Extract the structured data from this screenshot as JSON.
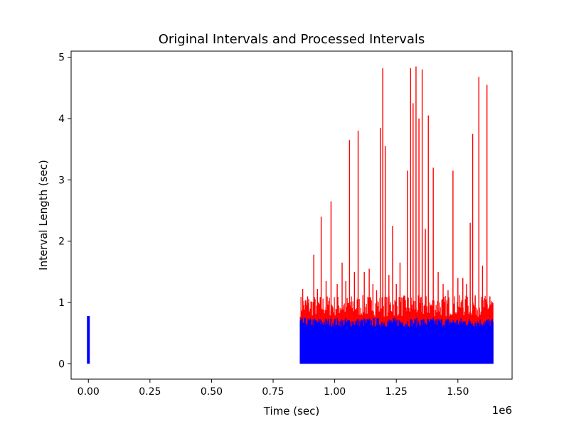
{
  "chart_data": {
    "type": "bar",
    "title": "Original Intervals and Processed Intervals",
    "xlabel": "Time (sec)",
    "ylabel": "Interval Length (sec)",
    "x_offset_text": "1e6",
    "xlim": [
      -70000,
      1720000
    ],
    "ylim": [
      -0.25,
      5.1
    ],
    "xticks": [
      0,
      250000,
      500000,
      750000,
      1000000,
      1250000,
      1500000
    ],
    "xtick_labels": [
      "0.00",
      "0.25",
      "0.50",
      "0.75",
      "1.00",
      "1.25",
      "1.50"
    ],
    "yticks": [
      0,
      1,
      2,
      3,
      4,
      5
    ],
    "ytick_labels": [
      "0",
      "1",
      "2",
      "3",
      "4",
      "5"
    ],
    "grid": false,
    "legend": "none",
    "series": [
      {
        "color": "#ff0000",
        "x_range": [
          860000,
          1645000
        ],
        "baseline": 0.82,
        "peaks": [
          [
            870000,
            1.22
          ],
          [
            890000,
            1.1
          ],
          [
            915000,
            1.78
          ],
          [
            930000,
            1.22
          ],
          [
            945000,
            2.4
          ],
          [
            965000,
            1.35
          ],
          [
            985000,
            2.65
          ],
          [
            1010000,
            1.3
          ],
          [
            1030000,
            1.65
          ],
          [
            1045000,
            1.35
          ],
          [
            1060000,
            3.65
          ],
          [
            1080000,
            1.5
          ],
          [
            1095000,
            3.8
          ],
          [
            1120000,
            1.5
          ],
          [
            1140000,
            1.55
          ],
          [
            1155000,
            1.3
          ],
          [
            1170000,
            1.2
          ],
          [
            1185000,
            3.85
          ],
          [
            1195000,
            4.82
          ],
          [
            1205000,
            3.55
          ],
          [
            1220000,
            1.45
          ],
          [
            1235000,
            2.25
          ],
          [
            1250000,
            1.3
          ],
          [
            1265000,
            1.65
          ],
          [
            1280000,
            1.1
          ],
          [
            1295000,
            3.15
          ],
          [
            1308000,
            4.82
          ],
          [
            1318000,
            4.25
          ],
          [
            1330000,
            4.85
          ],
          [
            1342000,
            4.0
          ],
          [
            1355000,
            4.8
          ],
          [
            1368000,
            2.2
          ],
          [
            1380000,
            4.05
          ],
          [
            1400000,
            3.2
          ],
          [
            1420000,
            1.5
          ],
          [
            1440000,
            1.3
          ],
          [
            1460000,
            1.2
          ],
          [
            1480000,
            3.15
          ],
          [
            1500000,
            1.4
          ],
          [
            1520000,
            1.4
          ],
          [
            1535000,
            1.3
          ],
          [
            1550000,
            2.3
          ],
          [
            1560000,
            3.75
          ],
          [
            1570000,
            1.1
          ],
          [
            1585000,
            4.68
          ],
          [
            1600000,
            1.6
          ],
          [
            1618000,
            4.55
          ],
          [
            1630000,
            1.1
          ],
          [
            1640000,
            1.0
          ]
        ]
      },
      {
        "color": "#0000ff",
        "x_range": [
          860000,
          1645000
        ],
        "level": 0.72,
        "early_bar": {
          "x": 0,
          "value": 0.78
        }
      }
    ]
  }
}
